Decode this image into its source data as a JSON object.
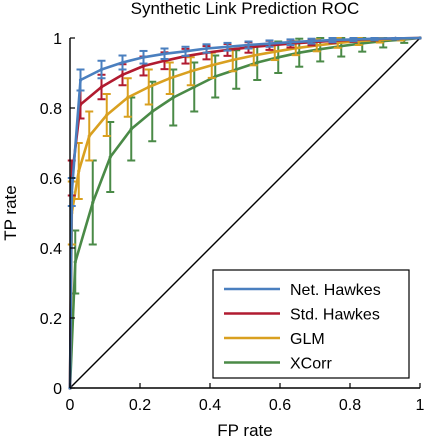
{
  "chart_data": {
    "type": "line",
    "title": "Synthetic Link Prediction ROC",
    "xlabel": "FP rate",
    "ylabel": "TP rate",
    "xlim": [
      0,
      1
    ],
    "ylim": [
      0,
      1
    ],
    "xticks": [
      0,
      0.2,
      0.4,
      0.6,
      0.8,
      1
    ],
    "xtick_labels": [
      "0",
      "0.2",
      "0.4",
      "0.6",
      "0.8",
      "1"
    ],
    "yticks": [
      0,
      0.2,
      0.4,
      0.6,
      0.8,
      1
    ],
    "ytick_labels": [
      "0",
      "0.2",
      "0.4",
      "0.6",
      "0.8",
      "1"
    ],
    "grid": false,
    "legend_position": "bottom-right",
    "diagonal_color": "#000000",
    "series": [
      {
        "name": "Net. Hawkes",
        "color": "#4a7fbf",
        "x": [
          0,
          0.005,
          0.03,
          0.09,
          0.15,
          0.21,
          0.27,
          0.33,
          0.39,
          0.45,
          0.51,
          0.57,
          0.63,
          0.69,
          0.75,
          0.81,
          0.87,
          0.93,
          1
        ],
        "y": [
          0,
          0.56,
          0.88,
          0.91,
          0.93,
          0.945,
          0.955,
          0.962,
          0.97,
          0.975,
          0.98,
          0.984,
          0.988,
          0.991,
          0.994,
          0.996,
          0.998,
          0.999,
          1
        ],
        "err": [
          0,
          0.04,
          0.03,
          0.025,
          0.02,
          0.018,
          0.015,
          0.013,
          0.012,
          0.011,
          0.01,
          0.009,
          0.008,
          0.007,
          0.006,
          0.005,
          0.004,
          0.003,
          0
        ]
      },
      {
        "name": "Std. Hawkes",
        "color": "#b11b30",
        "x": [
          0,
          0.005,
          0.03,
          0.09,
          0.15,
          0.21,
          0.27,
          0.33,
          0.39,
          0.45,
          0.51,
          0.57,
          0.63,
          0.69,
          0.75,
          0.81,
          0.87,
          0.93,
          1
        ],
        "y": [
          0,
          0.6,
          0.81,
          0.86,
          0.895,
          0.92,
          0.935,
          0.948,
          0.958,
          0.966,
          0.973,
          0.979,
          0.984,
          0.988,
          0.992,
          0.995,
          0.997,
          0.999,
          1
        ],
        "err": [
          0,
          0.05,
          0.04,
          0.035,
          0.03,
          0.027,
          0.024,
          0.021,
          0.019,
          0.017,
          0.015,
          0.013,
          0.011,
          0.009,
          0.007,
          0.006,
          0.004,
          0.003,
          0
        ]
      },
      {
        "name": "GLM",
        "color": "#d9a020",
        "x": [
          0,
          0.005,
          0.025,
          0.055,
          0.105,
          0.165,
          0.225,
          0.285,
          0.345,
          0.405,
          0.465,
          0.525,
          0.585,
          0.645,
          0.705,
          0.765,
          0.825,
          0.885,
          0.945,
          1
        ],
        "y": [
          0,
          0.5,
          0.62,
          0.72,
          0.78,
          0.83,
          0.86,
          0.885,
          0.905,
          0.922,
          0.937,
          0.95,
          0.961,
          0.971,
          0.979,
          0.986,
          0.991,
          0.995,
          0.998,
          1
        ],
        "err": [
          0,
          0.09,
          0.08,
          0.07,
          0.06,
          0.055,
          0.05,
          0.045,
          0.04,
          0.036,
          0.032,
          0.028,
          0.024,
          0.02,
          0.017,
          0.014,
          0.011,
          0.008,
          0.005,
          0
        ]
      },
      {
        "name": "XCorr",
        "color": "#4a8a47",
        "x": [
          0,
          0.015,
          0.065,
          0.115,
          0.175,
          0.235,
          0.295,
          0.355,
          0.415,
          0.475,
          0.535,
          0.595,
          0.655,
          0.715,
          0.775,
          0.835,
          0.895,
          0.955,
          1
        ],
        "y": [
          0,
          0.36,
          0.53,
          0.66,
          0.74,
          0.79,
          0.83,
          0.86,
          0.89,
          0.91,
          0.93,
          0.945,
          0.958,
          0.968,
          0.977,
          0.985,
          0.991,
          0.996,
          1
        ],
        "err": [
          0,
          0.09,
          0.12,
          0.1,
          0.09,
          0.085,
          0.08,
          0.07,
          0.06,
          0.055,
          0.05,
          0.045,
          0.04,
          0.035,
          0.03,
          0.024,
          0.018,
          0.01,
          0
        ]
      }
    ]
  }
}
